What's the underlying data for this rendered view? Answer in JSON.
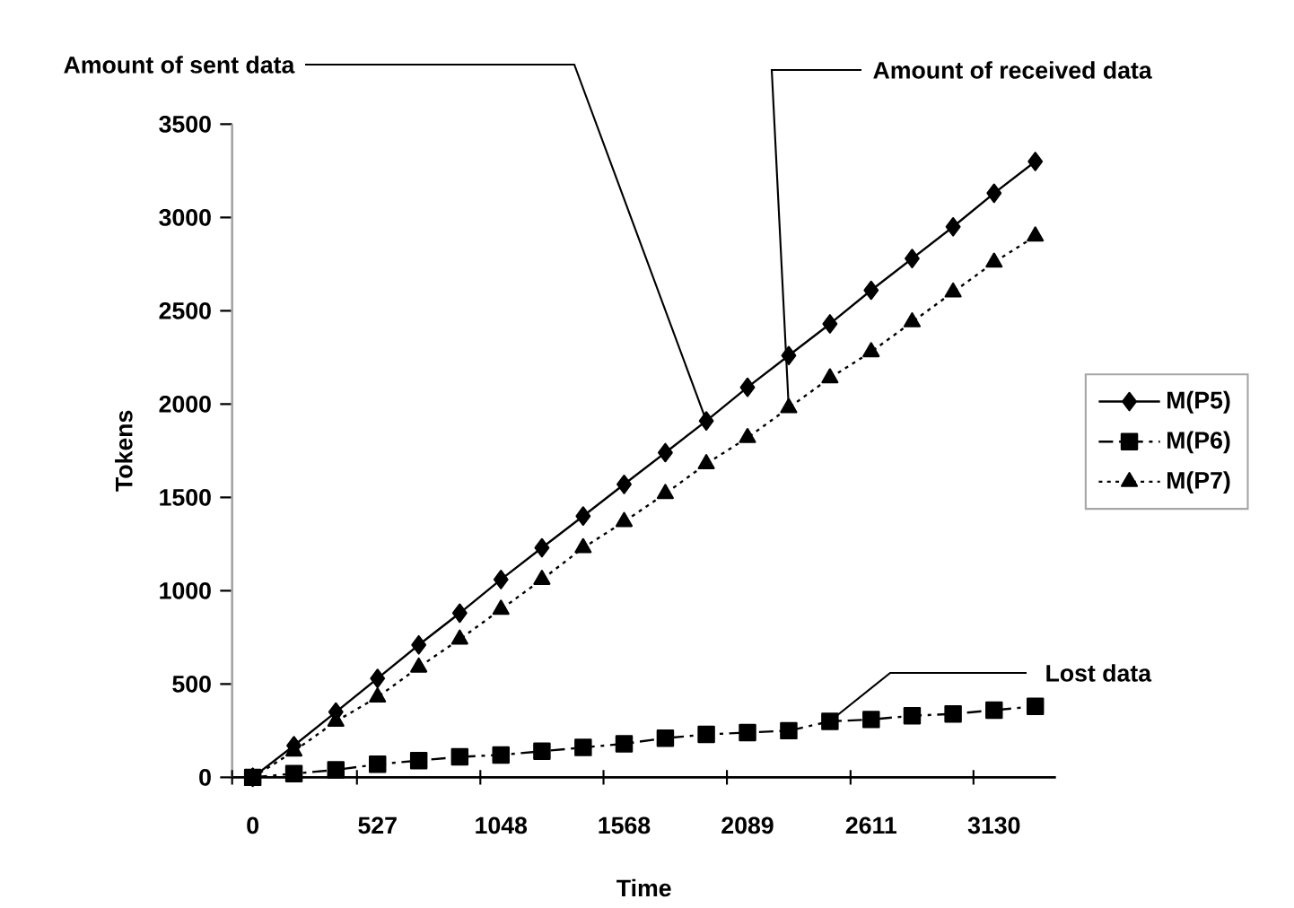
{
  "chart_data": {
    "type": "line",
    "xlabel": "Time",
    "ylabel": "Tokens",
    "x": [
      0,
      174,
      351,
      527,
      701,
      874,
      1048,
      1221,
      1395,
      1568,
      1742,
      1915,
      2089,
      2263,
      2437,
      2611,
      2784,
      2957,
      3130,
      3304
    ],
    "xlim": [
      -87,
      3391
    ],
    "xticks": [
      0,
      527,
      1048,
      1568,
      2089,
      2611,
      3130,
      {
        "value": -87,
        "label": null
      },
      {
        "value": 440,
        "label": null
      },
      {
        "value": 961,
        "label": null
      },
      {
        "value": 1481,
        "label": null
      },
      {
        "value": 2002,
        "label": null
      },
      {
        "value": 2524,
        "label": null
      },
      {
        "value": 3043,
        "label": null
      }
    ],
    "ylim": [
      0,
      3500
    ],
    "yticks": [
      0,
      500,
      1000,
      1500,
      2000,
      2500,
      3000,
      3500
    ],
    "series": [
      {
        "name": "M(P5)",
        "color": "#000000",
        "marker": "diamond",
        "line_style": "solid",
        "values": [
          0,
          170,
          350,
          530,
          710,
          880,
          1060,
          1230,
          1400,
          1570,
          1740,
          1910,
          2090,
          2260,
          2430,
          2610,
          2780,
          2950,
          3130,
          3300
        ]
      },
      {
        "name": "M(P6)",
        "color": "#000000",
        "marker": "square",
        "line_style": "dashed",
        "values": [
          0,
          20,
          40,
          70,
          90,
          110,
          120,
          140,
          160,
          180,
          210,
          230,
          240,
          250,
          300,
          310,
          330,
          340,
          360,
          380
        ]
      },
      {
        "name": "M(P7)",
        "color": "#000000",
        "marker": "triangle",
        "line_style": "dotted",
        "values": [
          0,
          140,
          300,
          430,
          590,
          740,
          900,
          1060,
          1230,
          1370,
          1520,
          1680,
          1820,
          1980,
          2140,
          2280,
          2440,
          2600,
          2760,
          2900
        ]
      }
    ],
    "annotations": [
      {
        "text": "Amount of sent data",
        "x": 1915,
        "y": 1910
      },
      {
        "text": "Amount of received data",
        "x": 2263,
        "y": 1980
      },
      {
        "text": "Lost data",
        "x": 2437,
        "y": 301
      }
    ],
    "legend": "right",
    "grid": false
  }
}
